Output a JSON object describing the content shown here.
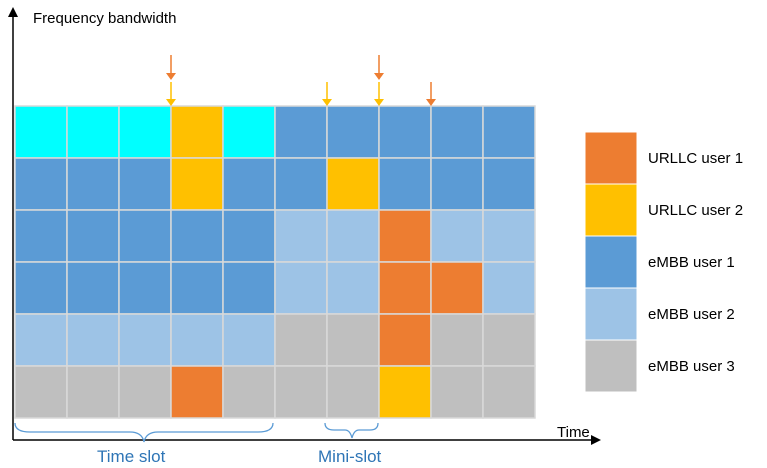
{
  "axes": {
    "y_label": "Frequency bandwidth",
    "x_label": "Time"
  },
  "annotations": {
    "time_slot": "Time slot",
    "mini_slot": "Mini-slot"
  },
  "legend": [
    {
      "label": "URLLC user 1",
      "key": "urllc1",
      "color": "#ED7D31"
    },
    {
      "label": "URLLC user 2",
      "key": "urllc2",
      "color": "#FFC000"
    },
    {
      "label": "eMBB user 1",
      "key": "embb1",
      "color": "#5B9BD5"
    },
    {
      "label": "eMBB user 2",
      "key": "embb2",
      "color": "#9DC3E6"
    },
    {
      "label": "eMBB user 3",
      "key": "embb3",
      "color": "#BFBFBF"
    }
  ],
  "palette": {
    "cyan": "#00FFFF",
    "urllc1": "#ED7D31",
    "urllc2": "#FFC000",
    "embb1": "#5B9BD5",
    "embb2": "#9DC3E6",
    "embb3": "#BFBFBF",
    "annotation_text": "#2E75B6",
    "brace": "#5B9BD5",
    "arrow_urllc1": "#ED7D31",
    "arrow_urllc2": "#FFC000"
  },
  "grid": [
    [
      "cyan",
      "cyan",
      "cyan",
      "urllc2",
      "cyan",
      "embb1",
      "embb1",
      "embb1",
      "embb1",
      "embb1"
    ],
    [
      "embb1",
      "embb1",
      "embb1",
      "urllc2",
      "embb1",
      "embb1",
      "urllc2",
      "embb1",
      "embb1",
      "embb1"
    ],
    [
      "embb1",
      "embb1",
      "embb1",
      "embb1",
      "embb1",
      "embb2",
      "embb2",
      "urllc1",
      "embb2",
      "embb2"
    ],
    [
      "embb1",
      "embb1",
      "embb1",
      "embb1",
      "embb1",
      "embb2",
      "embb2",
      "urllc1",
      "urllc1",
      "embb2"
    ],
    [
      "embb2",
      "embb2",
      "embb2",
      "embb2",
      "embb2",
      "embb3",
      "embb3",
      "urllc1",
      "embb3",
      "embb3"
    ],
    [
      "embb3",
      "embb3",
      "embb3",
      "urllc1",
      "embb3",
      "embb3",
      "embb3",
      "urllc2",
      "embb3",
      "embb3"
    ]
  ],
  "arrival_arrows": [
    {
      "column": 3,
      "type": "double"
    },
    {
      "column": 6,
      "type": "single_urllc2"
    },
    {
      "column": 7,
      "type": "double"
    },
    {
      "column": 8,
      "type": "single_urllc1"
    }
  ]
}
